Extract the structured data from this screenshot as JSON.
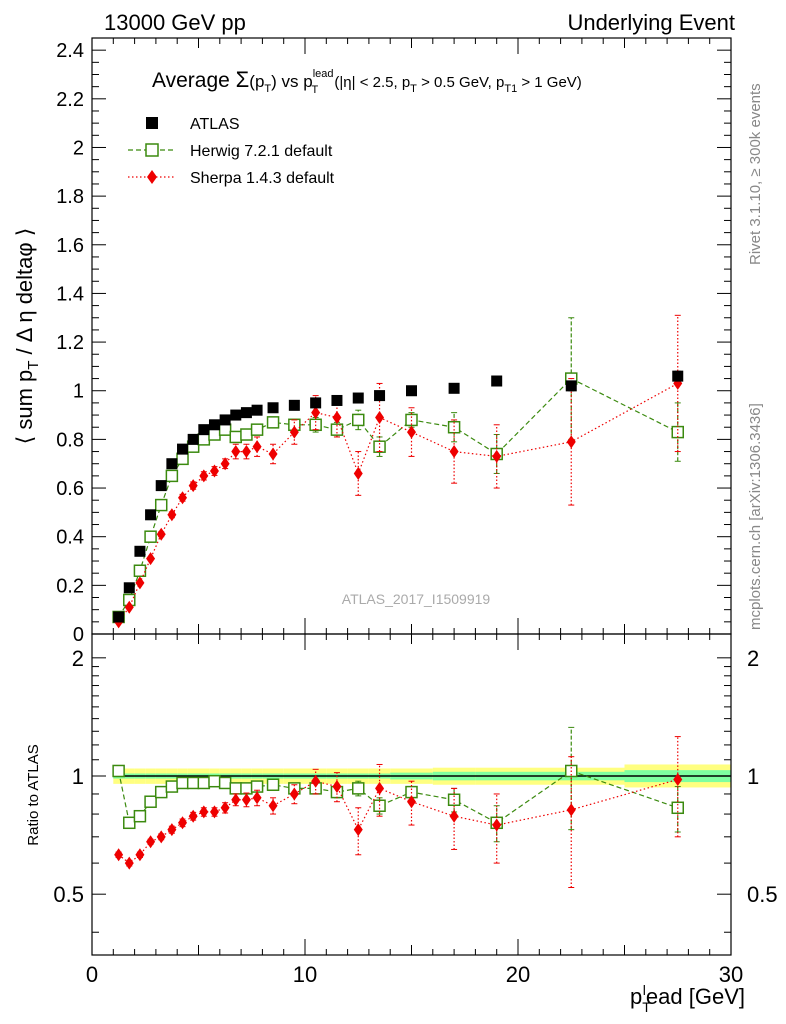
{
  "header": {
    "left": "13000 GeV pp",
    "right": "Underlying Event"
  },
  "side": {
    "rivet": "Rivet 3.1.10, ≥ 300k events",
    "mcplots": "mcplots.cern.ch [arXiv:1306.3436]"
  },
  "title": {
    "prefix": "Average ",
    "sigma": "Σ",
    "arg_open": "(p",
    "arg_sub": "T",
    "arg_close": ")",
    "vs": " vs p",
    "vs_sup": "lead",
    "vs_sub": "T",
    "cuts_a": " (|η| < 2.5, p",
    "cuts_a_sub": "T",
    "cuts_b": " > 0.5 GeV, p",
    "cuts_b_sub": "T1",
    "cuts_c": " > 1 GeV)"
  },
  "watermark": "ATLAS_2017_I1509919",
  "legend": {
    "atlas": "ATLAS",
    "herwig": "Herwig 7.2.1 default",
    "sherpa": "Sherpa 1.4.3 default"
  },
  "colors": {
    "atlas": "#000000",
    "herwig": "#3b8a0f",
    "sherpa": "#ee0000",
    "band_inner": "#7fffa0",
    "band_outer": "#ffff80"
  },
  "chart_data": [
    {
      "type": "scatter",
      "panel": "main",
      "ylabel": "⟨ sum p_T / Δη deltaφ ⟩",
      "xlim": [
        0,
        30
      ],
      "ylim": [
        0,
        2.45
      ],
      "yticks": [
        "0",
        "0.2",
        "0.4",
        "0.6",
        "0.8",
        "1",
        "1.2",
        "1.4",
        "1.6",
        "1.8",
        "2",
        "2.2",
        "2.4"
      ],
      "series": [
        {
          "name": "ATLAS",
          "x": [
            1.25,
            1.75,
            2.25,
            2.75,
            3.25,
            3.75,
            4.25,
            4.75,
            5.25,
            5.75,
            6.25,
            6.75,
            7.25,
            7.75,
            8.5,
            9.5,
            10.5,
            11.5,
            12.5,
            13.5,
            15.0,
            17.0,
            19.0,
            22.5,
            27.5
          ],
          "y": [
            0.07,
            0.19,
            0.34,
            0.49,
            0.61,
            0.7,
            0.76,
            0.8,
            0.84,
            0.86,
            0.88,
            0.9,
            0.91,
            0.92,
            0.93,
            0.94,
            0.95,
            0.96,
            0.97,
            0.98,
            1.0,
            1.01,
            1.04,
            1.02,
            1.06
          ],
          "yerr": [
            0.005,
            0.005,
            0.005,
            0.005,
            0.005,
            0.005,
            0.005,
            0.005,
            0.005,
            0.005,
            0.005,
            0.005,
            0.005,
            0.005,
            0.005,
            0.005,
            0.006,
            0.006,
            0.006,
            0.006,
            0.008,
            0.01,
            0.01,
            0.02,
            0.02
          ]
        },
        {
          "name": "Herwig 7.2.1 default",
          "x": [
            1.25,
            1.75,
            2.25,
            2.75,
            3.25,
            3.75,
            4.25,
            4.75,
            5.25,
            5.75,
            6.25,
            6.75,
            7.25,
            7.75,
            8.5,
            9.5,
            10.5,
            11.5,
            12.5,
            13.5,
            15.0,
            17.0,
            19.0,
            22.5,
            27.5
          ],
          "y": [
            0.07,
            0.14,
            0.26,
            0.4,
            0.53,
            0.65,
            0.72,
            0.77,
            0.8,
            0.82,
            0.84,
            0.81,
            0.82,
            0.84,
            0.87,
            0.86,
            0.86,
            0.84,
            0.88,
            0.77,
            0.88,
            0.85,
            0.74,
            1.05,
            0.83
          ],
          "yerr": [
            0.005,
            0.005,
            0.005,
            0.006,
            0.007,
            0.008,
            0.01,
            0.01,
            0.01,
            0.01,
            0.012,
            0.015,
            0.015,
            0.02,
            0.02,
            0.02,
            0.03,
            0.03,
            0.04,
            0.04,
            0.03,
            0.06,
            0.08,
            0.25,
            0.12
          ]
        },
        {
          "name": "Sherpa 1.4.3 default",
          "x": [
            1.25,
            1.75,
            2.25,
            2.75,
            3.25,
            3.75,
            4.25,
            4.75,
            5.25,
            5.75,
            6.25,
            6.75,
            7.25,
            7.75,
            8.5,
            9.5,
            10.5,
            11.5,
            12.5,
            13.5,
            15.0,
            17.0,
            19.0,
            22.5,
            27.5
          ],
          "y": [
            0.05,
            0.11,
            0.21,
            0.31,
            0.41,
            0.49,
            0.56,
            0.61,
            0.65,
            0.67,
            0.7,
            0.75,
            0.75,
            0.77,
            0.74,
            0.83,
            0.91,
            0.89,
            0.66,
            0.89,
            0.83,
            0.75,
            0.73,
            0.79,
            1.03
          ],
          "yerr": [
            0.005,
            0.005,
            0.007,
            0.008,
            0.01,
            0.012,
            0.014,
            0.015,
            0.017,
            0.018,
            0.02,
            0.03,
            0.03,
            0.04,
            0.04,
            0.05,
            0.07,
            0.08,
            0.09,
            0.14,
            0.1,
            0.13,
            0.13,
            0.26,
            0.28
          ]
        }
      ]
    },
    {
      "type": "scatter",
      "panel": "ratio",
      "ylabel": "Ratio to ATLAS",
      "xlabel_main": "p",
      "xlabel_sub": "T",
      "xlabel_sup": "l",
      "xlabel_rest": "ead [GeV]",
      "xlim": [
        0,
        30
      ],
      "ylim": [
        0.35,
        2.3
      ],
      "yscale": "log",
      "xticks": [
        "0",
        "10",
        "20",
        "30"
      ],
      "yticks": [
        "0.5",
        "1",
        "2"
      ],
      "band": {
        "x_edges": [
          1.0,
          1.5,
          2.0,
          2.5,
          3.0,
          3.5,
          4.0,
          4.5,
          5.0,
          5.5,
          6.0,
          6.5,
          7.0,
          7.5,
          8.0,
          9.0,
          10.0,
          11.0,
          12.0,
          13.0,
          14.0,
          16.0,
          18.0,
          20.0,
          25.0,
          30.0
        ],
        "inner_lo": [
          0.985,
          0.985,
          0.985,
          0.985,
          0.985,
          0.985,
          0.985,
          0.985,
          0.985,
          0.985,
          0.985,
          0.985,
          0.985,
          0.985,
          0.985,
          0.985,
          0.985,
          0.985,
          0.985,
          0.985,
          0.98,
          0.975,
          0.975,
          0.975,
          0.965
        ],
        "inner_hi": [
          1.015,
          1.015,
          1.015,
          1.015,
          1.015,
          1.015,
          1.015,
          1.015,
          1.015,
          1.015,
          1.015,
          1.015,
          1.015,
          1.015,
          1.015,
          1.015,
          1.015,
          1.015,
          1.015,
          1.015,
          1.02,
          1.025,
          1.025,
          1.025,
          1.035
        ],
        "outer_lo": [
          0.955,
          0.955,
          0.955,
          0.955,
          0.955,
          0.955,
          0.955,
          0.955,
          0.955,
          0.955,
          0.955,
          0.955,
          0.955,
          0.955,
          0.955,
          0.955,
          0.955,
          0.955,
          0.955,
          0.955,
          0.955,
          0.95,
          0.95,
          0.95,
          0.935
        ],
        "outer_hi": [
          1.045,
          1.045,
          1.045,
          1.045,
          1.045,
          1.045,
          1.045,
          1.045,
          1.045,
          1.045,
          1.045,
          1.045,
          1.045,
          1.045,
          1.045,
          1.045,
          1.045,
          1.045,
          1.045,
          1.045,
          1.045,
          1.05,
          1.05,
          1.05,
          1.07
        ]
      },
      "series": [
        {
          "name": "Herwig 7.2.1 default",
          "x": [
            1.25,
            1.75,
            2.25,
            2.75,
            3.25,
            3.75,
            4.25,
            4.75,
            5.25,
            5.75,
            6.25,
            6.75,
            7.25,
            7.75,
            8.5,
            9.5,
            10.5,
            11.5,
            12.5,
            13.5,
            15.0,
            17.0,
            19.0,
            22.5,
            27.5
          ],
          "y": [
            1.03,
            0.76,
            0.79,
            0.86,
            0.91,
            0.94,
            0.96,
            0.96,
            0.96,
            0.97,
            0.96,
            0.93,
            0.93,
            0.94,
            0.95,
            0.93,
            0.93,
            0.91,
            0.93,
            0.84,
            0.91,
            0.87,
            0.76,
            1.03,
            0.83
          ],
          "yerr": [
            0.01,
            0.01,
            0.01,
            0.01,
            0.01,
            0.01,
            0.01,
            0.01,
            0.01,
            0.01,
            0.012,
            0.015,
            0.015,
            0.02,
            0.02,
            0.02,
            0.03,
            0.03,
            0.04,
            0.04,
            0.03,
            0.06,
            0.08,
            0.3,
            0.11
          ]
        },
        {
          "name": "Sherpa 1.4.3 default",
          "x": [
            1.25,
            1.75,
            2.25,
            2.75,
            3.25,
            3.75,
            4.25,
            4.75,
            5.25,
            5.75,
            6.25,
            6.75,
            7.25,
            7.75,
            8.5,
            9.5,
            10.5,
            11.5,
            12.5,
            13.5,
            15.0,
            17.0,
            19.0,
            22.5,
            27.5
          ],
          "y": [
            0.63,
            0.6,
            0.63,
            0.68,
            0.7,
            0.73,
            0.76,
            0.79,
            0.81,
            0.81,
            0.83,
            0.87,
            0.87,
            0.88,
            0.84,
            0.9,
            0.97,
            0.94,
            0.73,
            0.93,
            0.86,
            0.79,
            0.75,
            0.82,
            0.98
          ],
          "yerr": [
            0.01,
            0.01,
            0.01,
            0.01,
            0.012,
            0.015,
            0.017,
            0.018,
            0.02,
            0.02,
            0.025,
            0.03,
            0.035,
            0.04,
            0.04,
            0.05,
            0.07,
            0.08,
            0.1,
            0.14,
            0.11,
            0.14,
            0.15,
            0.3,
            0.28
          ]
        }
      ]
    }
  ]
}
